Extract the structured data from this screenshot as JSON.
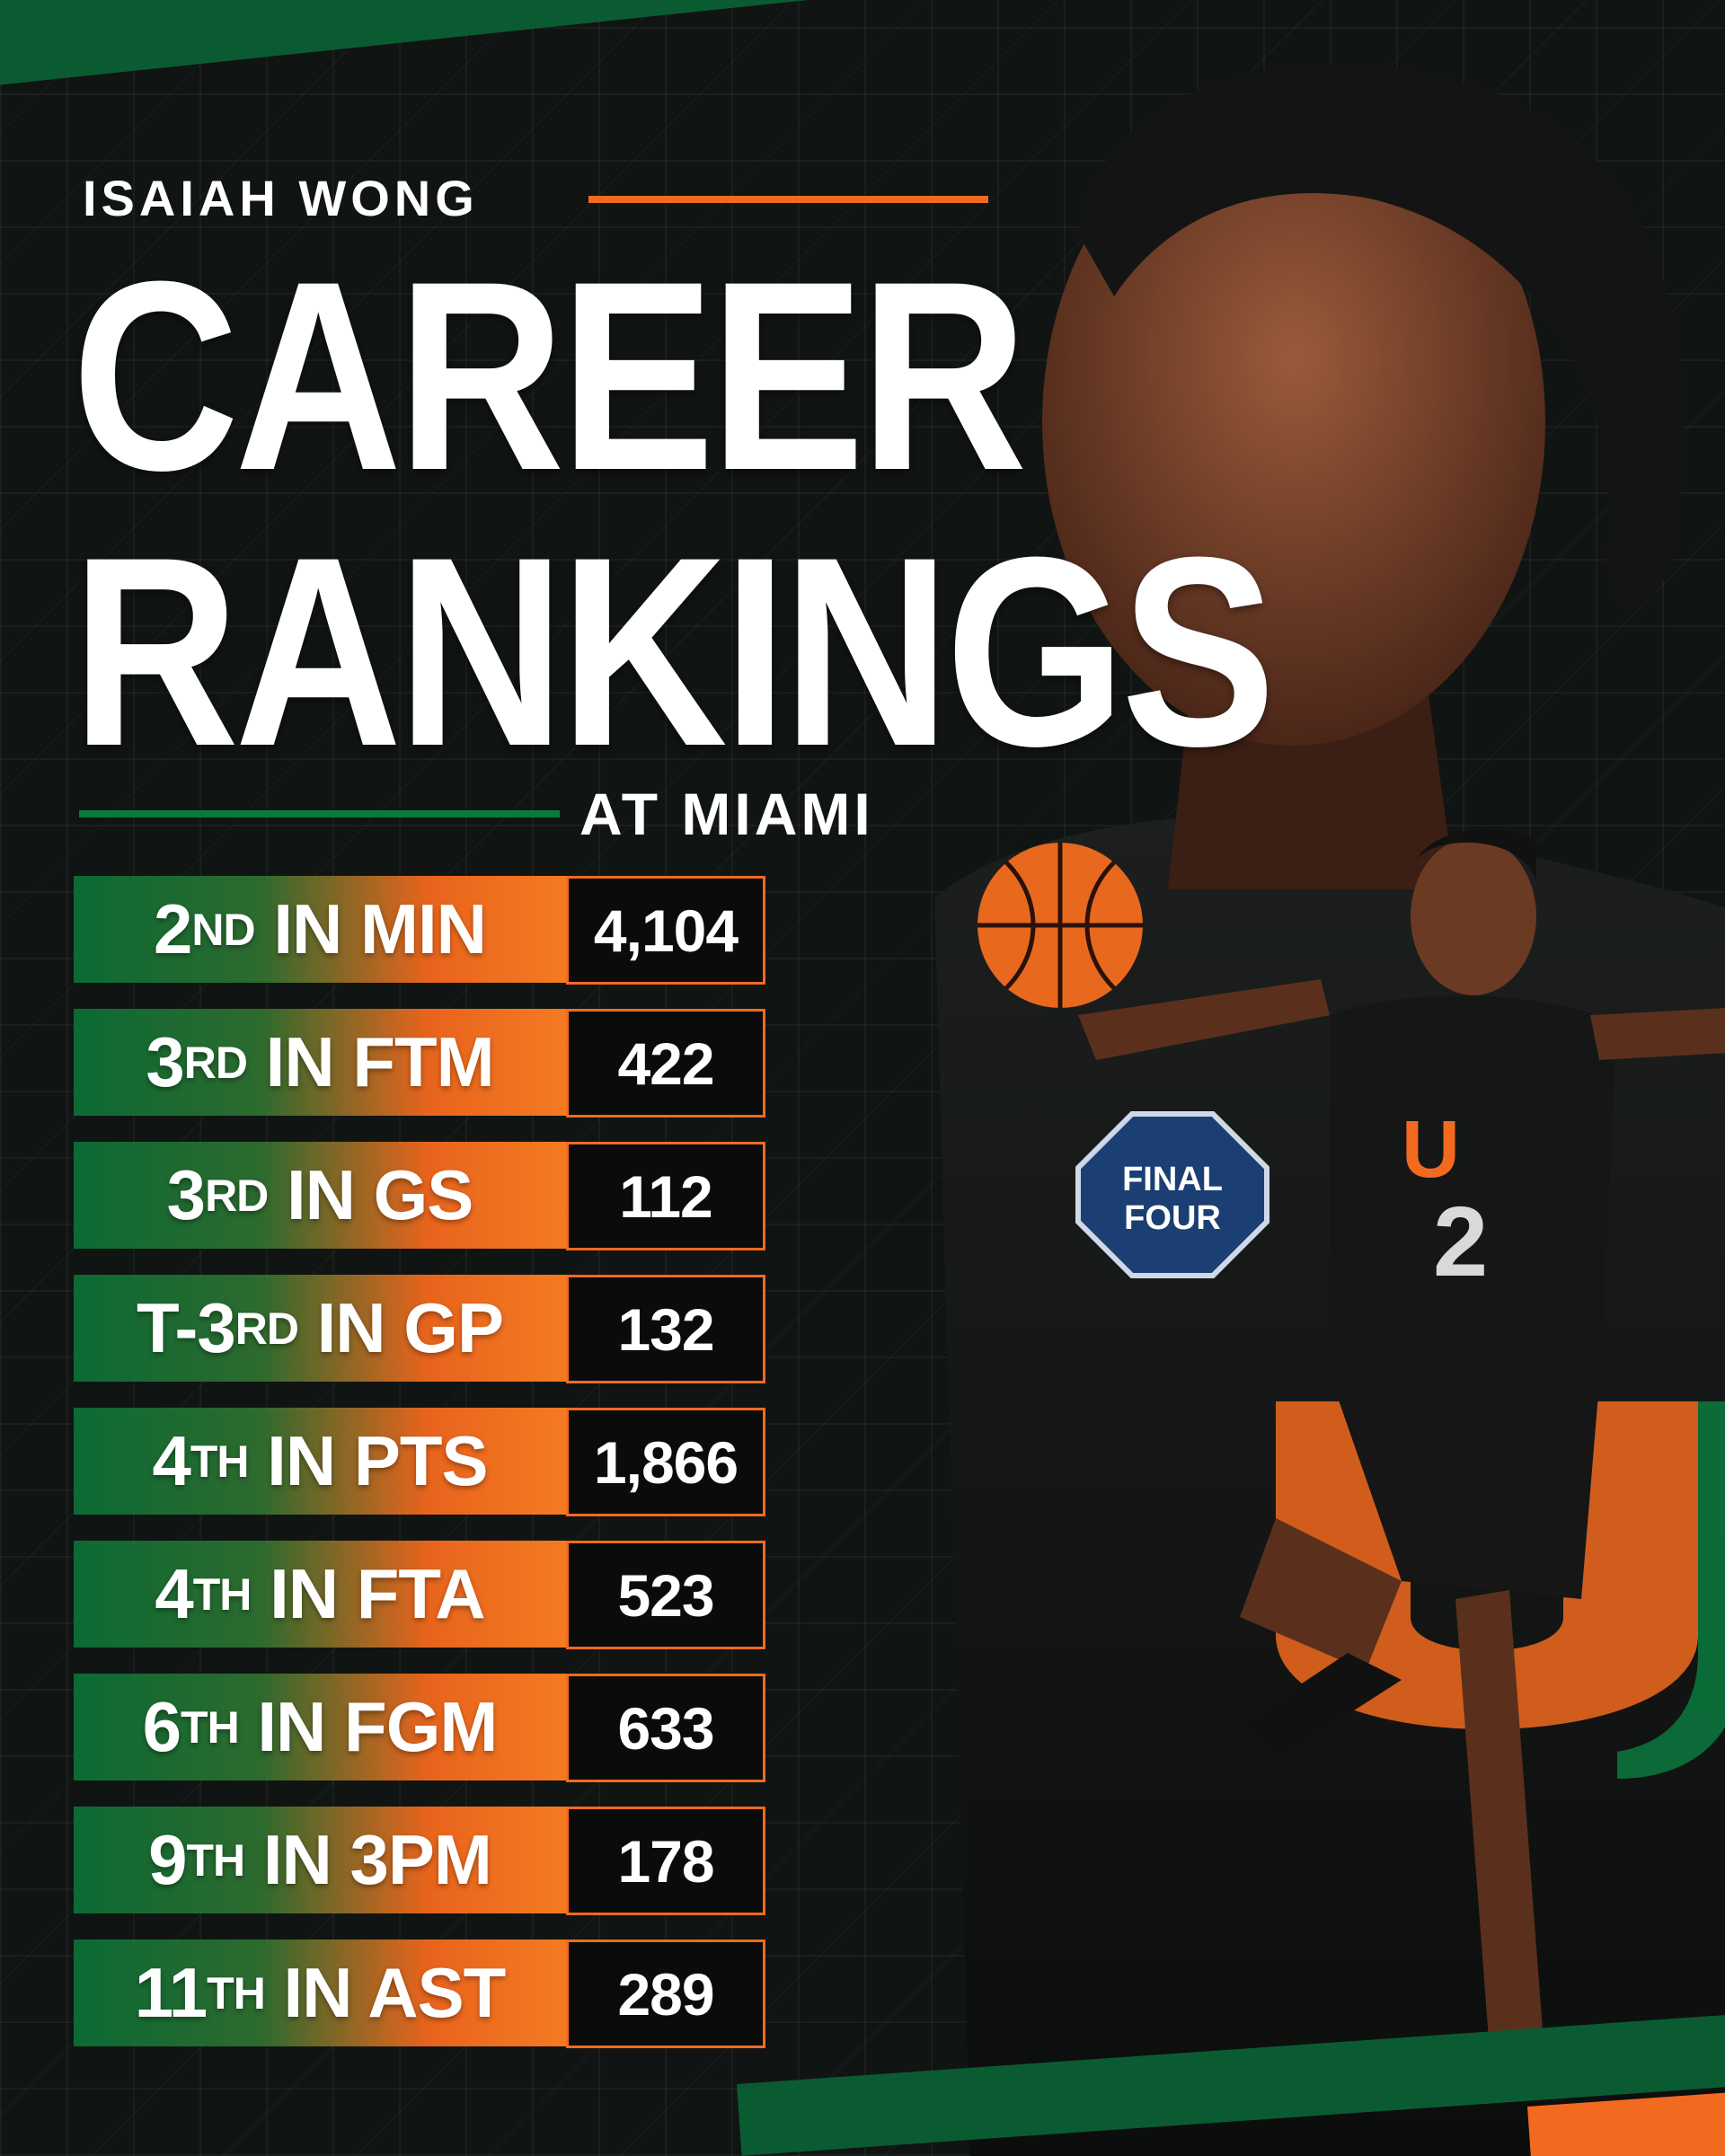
{
  "player": {
    "name": "ISAIAH WONG"
  },
  "headline": {
    "line1": "CAREER",
    "line2": "RANKINGS",
    "subhead": "AT MIAMI"
  },
  "colors": {
    "orange": "#f26a1f",
    "green": "#0b5b32",
    "background": "#101412"
  },
  "rankings": [
    {
      "rank": "2",
      "suffix": "ND",
      "stat": "IN MIN",
      "value": "4,104"
    },
    {
      "rank": "3",
      "suffix": "RD",
      "stat": "IN FTM",
      "value": "422"
    },
    {
      "rank": "3",
      "suffix": "RD",
      "stat": "IN GS",
      "value": "112"
    },
    {
      "rank": "T-3",
      "suffix": "RD",
      "stat": "IN GP",
      "value": "132"
    },
    {
      "rank": "4",
      "suffix": "TH",
      "stat": "IN PTS",
      "value": "1,866"
    },
    {
      "rank": "4",
      "suffix": "TH",
      "stat": "IN FTA",
      "value": "523"
    },
    {
      "rank": "6",
      "suffix": "TH",
      "stat": "IN FGM",
      "value": "633"
    },
    {
      "rank": "9",
      "suffix": "TH",
      "stat": "IN 3PM",
      "value": "178"
    },
    {
      "rank": "11",
      "suffix": "TH",
      "stat": "IN AST",
      "value": "289"
    }
  ],
  "jersey": {
    "number": "2",
    "logo_letter": "U"
  },
  "patch": {
    "line1": "FINAL",
    "line2": "FOUR"
  }
}
